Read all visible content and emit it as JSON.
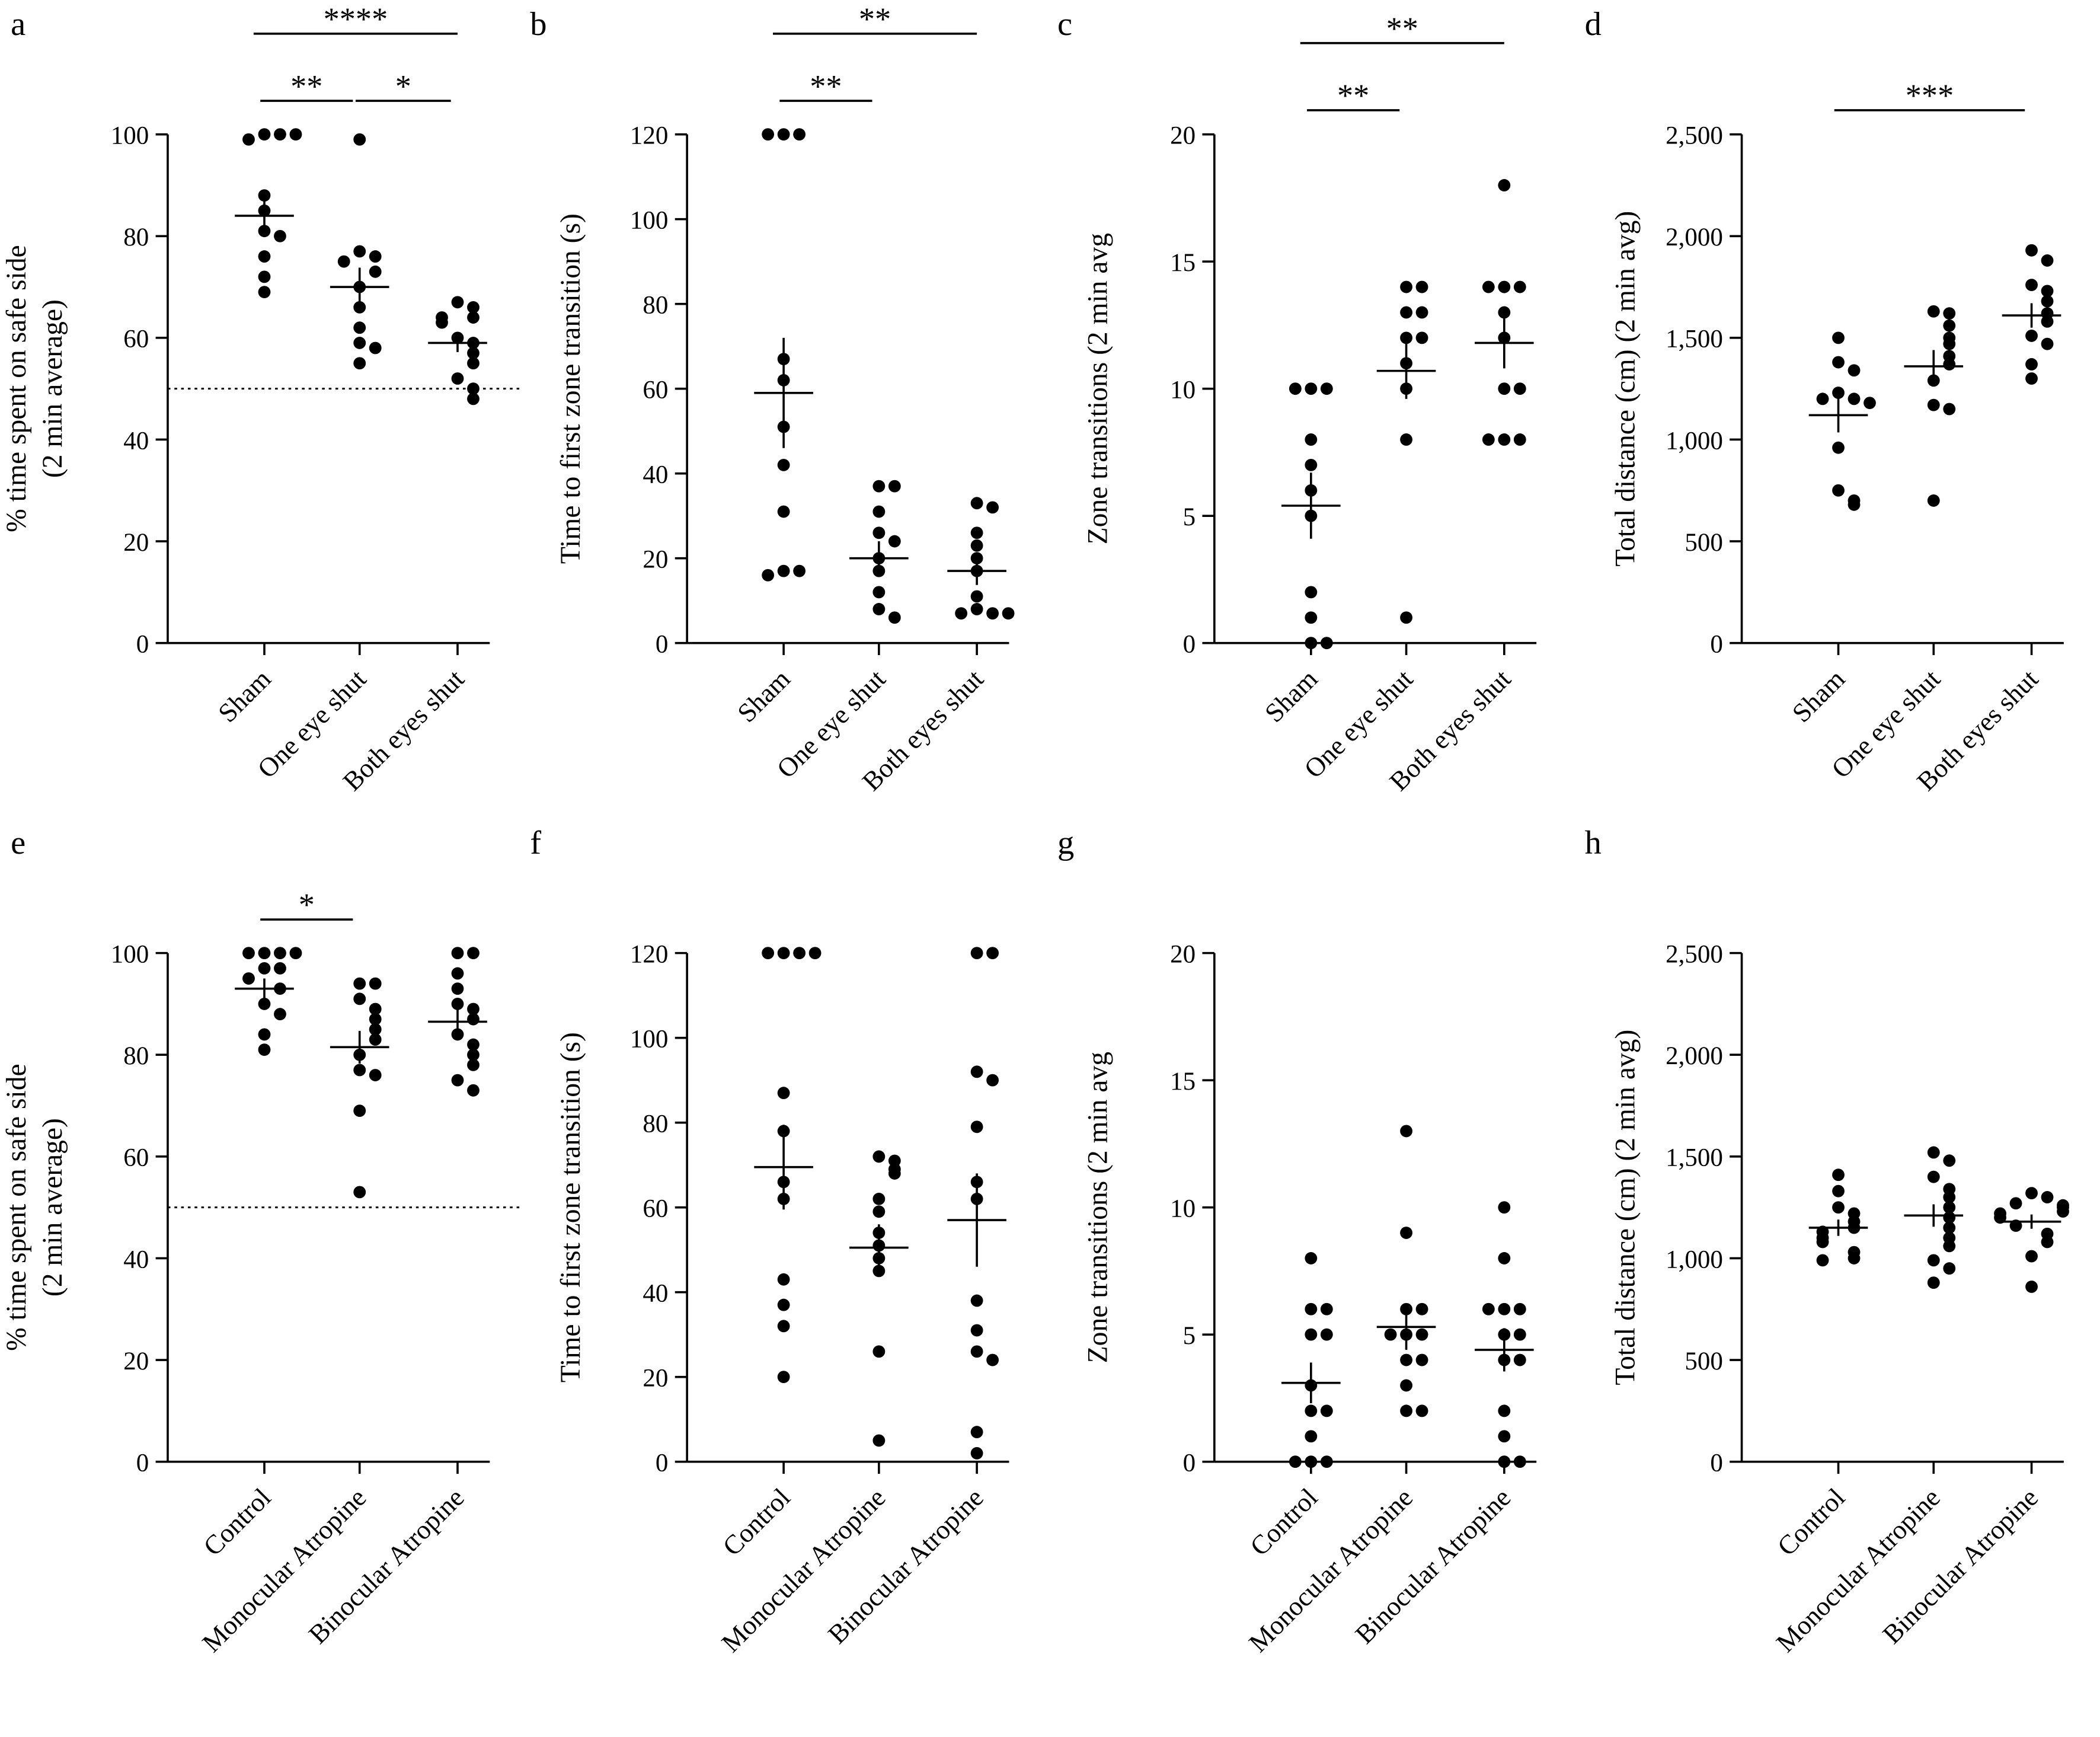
{
  "chart_data": [
    {
      "type": "strip",
      "panel": "a",
      "ylabel": [
        "% time spent on safe side",
        "(2 min average)"
      ],
      "categories": [
        "Sham",
        "One eye shut",
        "Both eyes shut"
      ],
      "values": [
        [
          100,
          100,
          99,
          100,
          88,
          85,
          81,
          80,
          76,
          72,
          69
        ],
        [
          99,
          77,
          76,
          75,
          73,
          70,
          66,
          62,
          59,
          58,
          55
        ],
        [
          67,
          66,
          64,
          64,
          63,
          60,
          59,
          57,
          55,
          52,
          50,
          48
        ]
      ],
      "means": [
        84,
        70,
        59
      ],
      "sems": [
        3.2,
        3.8,
        1.8
      ],
      "ylim": [
        0,
        100
      ],
      "yticks": [
        0,
        20,
        40,
        60,
        80,
        100
      ],
      "refline": 50,
      "significance": [
        {
          "from": 0,
          "to": 1,
          "label": "**"
        },
        {
          "from": 1,
          "to": 2,
          "label": "*"
        },
        {
          "from": 0,
          "to": 2,
          "label": "****"
        }
      ]
    },
    {
      "type": "strip",
      "panel": "b",
      "ylabel": [
        "Time to first zone transition (s)"
      ],
      "categories": [
        "Sham",
        "One eye shut",
        "Both eyes shut"
      ],
      "values": [
        [
          120,
          120,
          120,
          67,
          62,
          51,
          42,
          31,
          17,
          17,
          16
        ],
        [
          37,
          37,
          31,
          26,
          24,
          20,
          17,
          12,
          8,
          6
        ],
        [
          33,
          32,
          26,
          23,
          20,
          17,
          11,
          8,
          7,
          7,
          7
        ]
      ],
      "means": [
        59,
        20,
        17
      ],
      "sems": [
        13,
        4,
        3.3
      ],
      "ylim": [
        0,
        120
      ],
      "yticks": [
        0,
        20,
        40,
        60,
        80,
        100,
        120
      ],
      "significance": [
        {
          "from": 0,
          "to": 1,
          "label": "**"
        },
        {
          "from": 0,
          "to": 2,
          "label": "**"
        }
      ]
    },
    {
      "type": "strip",
      "panel": "c",
      "ylabel": [
        "Zone transitions (2 min avg"
      ],
      "categories": [
        "Sham",
        "One eye shut",
        "Both eyes shut"
      ],
      "values": [
        [
          10,
          10,
          10,
          8,
          7,
          6,
          5,
          2,
          1,
          0,
          0
        ],
        [
          14,
          14,
          13,
          13,
          12,
          12,
          11,
          10,
          8,
          1
        ],
        [
          18,
          14,
          14,
          14,
          13,
          12,
          10,
          10,
          8,
          8,
          8
        ]
      ],
      "means": [
        5.4,
        10.7,
        11.8
      ],
      "sems": [
        1.3,
        1.1,
        1.0
      ],
      "ylim": [
        0,
        20
      ],
      "yticks": [
        0,
        5,
        10,
        15,
        20
      ],
      "significance": [
        {
          "from": 0,
          "to": 1,
          "label": "**"
        },
        {
          "from": 0,
          "to": 2,
          "label": "**"
        }
      ]
    },
    {
      "type": "strip",
      "panel": "d",
      "ylabel": [
        "Total distance (cm) (2 min avg)"
      ],
      "categories": [
        "Sham",
        "One eye shut",
        "Both eyes shut"
      ],
      "values": [
        [
          1500,
          1380,
          1340,
          1230,
          1200,
          1200,
          1180,
          960,
          750,
          700,
          680
        ],
        [
          1630,
          1620,
          1560,
          1500,
          1470,
          1410,
          1370,
          1290,
          1170,
          1150,
          700
        ],
        [
          1930,
          1880,
          1760,
          1730,
          1680,
          1620,
          1580,
          1510,
          1470,
          1370,
          1300
        ]
      ],
      "means": [
        1120,
        1360,
        1610
      ],
      "sems": [
        85,
        80,
        60
      ],
      "ylim": [
        0,
        2500
      ],
      "yticks": [
        0,
        500,
        {
          "value": 1000,
          "label": "1,000"
        },
        {
          "value": 1500,
          "label": "1,500"
        },
        {
          "value": 2000,
          "label": "2,000"
        },
        {
          "value": 2500,
          "label": "2,500"
        }
      ],
      "significance": [
        {
          "from": 0,
          "to": 2,
          "label": "***"
        }
      ]
    },
    {
      "type": "strip",
      "panel": "e",
      "ylabel": [
        "% time spent on safe side",
        "(2 min average)"
      ],
      "categories": [
        "Control",
        "Monocular Atropine",
        "Binocular Atropine"
      ],
      "values": [
        [
          100,
          100,
          100,
          100,
          97,
          97,
          95,
          93,
          90,
          88,
          84,
          81
        ],
        [
          94,
          94,
          91,
          89,
          87,
          85,
          83,
          80,
          77,
          76,
          69,
          53
        ],
        [
          100,
          100,
          96,
          93,
          90,
          89,
          87,
          84,
          82,
          80,
          78,
          75,
          73
        ]
      ],
      "means": [
        93,
        81.5,
        86.5
      ],
      "sems": [
        2,
        3.2,
        2.6
      ],
      "ylim": [
        0,
        100
      ],
      "yticks": [
        0,
        20,
        40,
        60,
        80,
        100
      ],
      "refline": 50,
      "significance": [
        {
          "from": 0,
          "to": 1,
          "label": "*"
        }
      ]
    },
    {
      "type": "strip",
      "panel": "f",
      "ylabel": [
        "Time to first zone transition (s)"
      ],
      "categories": [
        "Control",
        "Monocular Atropine",
        "Binocular Atropine"
      ],
      "values": [
        [
          120,
          120,
          120,
          120,
          87,
          78,
          66,
          62,
          43,
          37,
          32,
          20
        ],
        [
          72,
          71,
          69,
          68,
          62,
          59,
          54,
          51,
          48,
          45,
          26,
          5
        ],
        [
          120,
          120,
          92,
          90,
          79,
          66,
          62,
          38,
          31,
          26,
          24,
          7,
          2
        ]
      ],
      "means": [
        69.5,
        50.5,
        57
      ],
      "sems": [
        10,
        5.5,
        11
      ],
      "ylim": [
        0,
        120
      ],
      "yticks": [
        0,
        20,
        40,
        60,
        80,
        100,
        120
      ]
    },
    {
      "type": "strip",
      "panel": "g",
      "ylabel": [
        "Zone transitions (2 min avg"
      ],
      "categories": [
        "Control",
        "Monocular Atropine",
        "Binocular Atropine"
      ],
      "values": [
        [
          8,
          6,
          6,
          5,
          5,
          3,
          2,
          2,
          1,
          0,
          0,
          0
        ],
        [
          13,
          9,
          6,
          6,
          5,
          5,
          5,
          4,
          4,
          3,
          2,
          2
        ],
        [
          10,
          8,
          6,
          6,
          6,
          5,
          5,
          4,
          4,
          2,
          1,
          0,
          0
        ]
      ],
      "means": [
        3.1,
        5.3,
        4.4
      ],
      "sems": [
        0.8,
        0.9,
        0.85
      ],
      "ylim": [
        0,
        20
      ],
      "yticks": [
        0,
        5,
        10,
        15,
        20
      ]
    },
    {
      "type": "strip",
      "panel": "h",
      "ylabel": [
        "Total distance (cm) (2 min avg)"
      ],
      "categories": [
        "Control",
        "Monocular Atropine",
        "Binocular Atropine"
      ],
      "values": [
        [
          1410,
          1330,
          1250,
          1220,
          1180,
          1150,
          1130,
          1100,
          1080,
          1030,
          1000,
          990
        ],
        [
          1520,
          1480,
          1400,
          1340,
          1300,
          1250,
          1200,
          1150,
          1100,
          1060,
          990,
          950,
          880
        ],
        [
          1320,
          1300,
          1270,
          1260,
          1250,
          1230,
          1220,
          1200,
          1160,
          1120,
          1080,
          1010,
          860
        ]
      ],
      "means": [
        1150,
        1210,
        1180
      ],
      "sems": [
        40,
        55,
        35
      ],
      "ylim": [
        0,
        2500
      ],
      "yticks": [
        0,
        500,
        {
          "value": 1000,
          "label": "1,000"
        },
        {
          "value": 1500,
          "label": "1,500"
        },
        {
          "value": 2000,
          "label": "2,000"
        },
        {
          "value": 2500,
          "label": "2,500"
        }
      ]
    }
  ]
}
